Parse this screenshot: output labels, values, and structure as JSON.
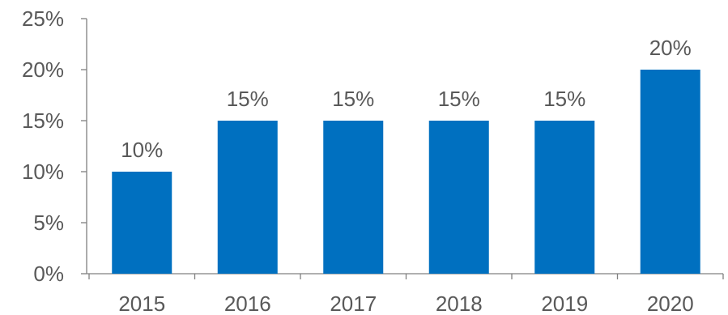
{
  "chart_data": {
    "type": "bar",
    "categories": [
      "2015",
      "2016",
      "2017",
      "2018",
      "2019",
      "2020"
    ],
    "values": [
      10,
      15,
      15,
      15,
      15,
      20
    ],
    "data_labels": [
      "10%",
      "15%",
      "15%",
      "15%",
      "15%",
      "20%"
    ],
    "title": "",
    "xlabel": "",
    "ylabel": "",
    "ylim": [
      0,
      25
    ],
    "y_ticks": [
      0,
      5,
      10,
      15,
      20,
      25
    ],
    "y_tick_labels": [
      "0%",
      "5%",
      "10%",
      "15%",
      "20%",
      "25%"
    ],
    "grid": false,
    "legend": "none",
    "bar_color": "#0070C0",
    "text_color": "#595959",
    "axis_color": "#808080"
  }
}
